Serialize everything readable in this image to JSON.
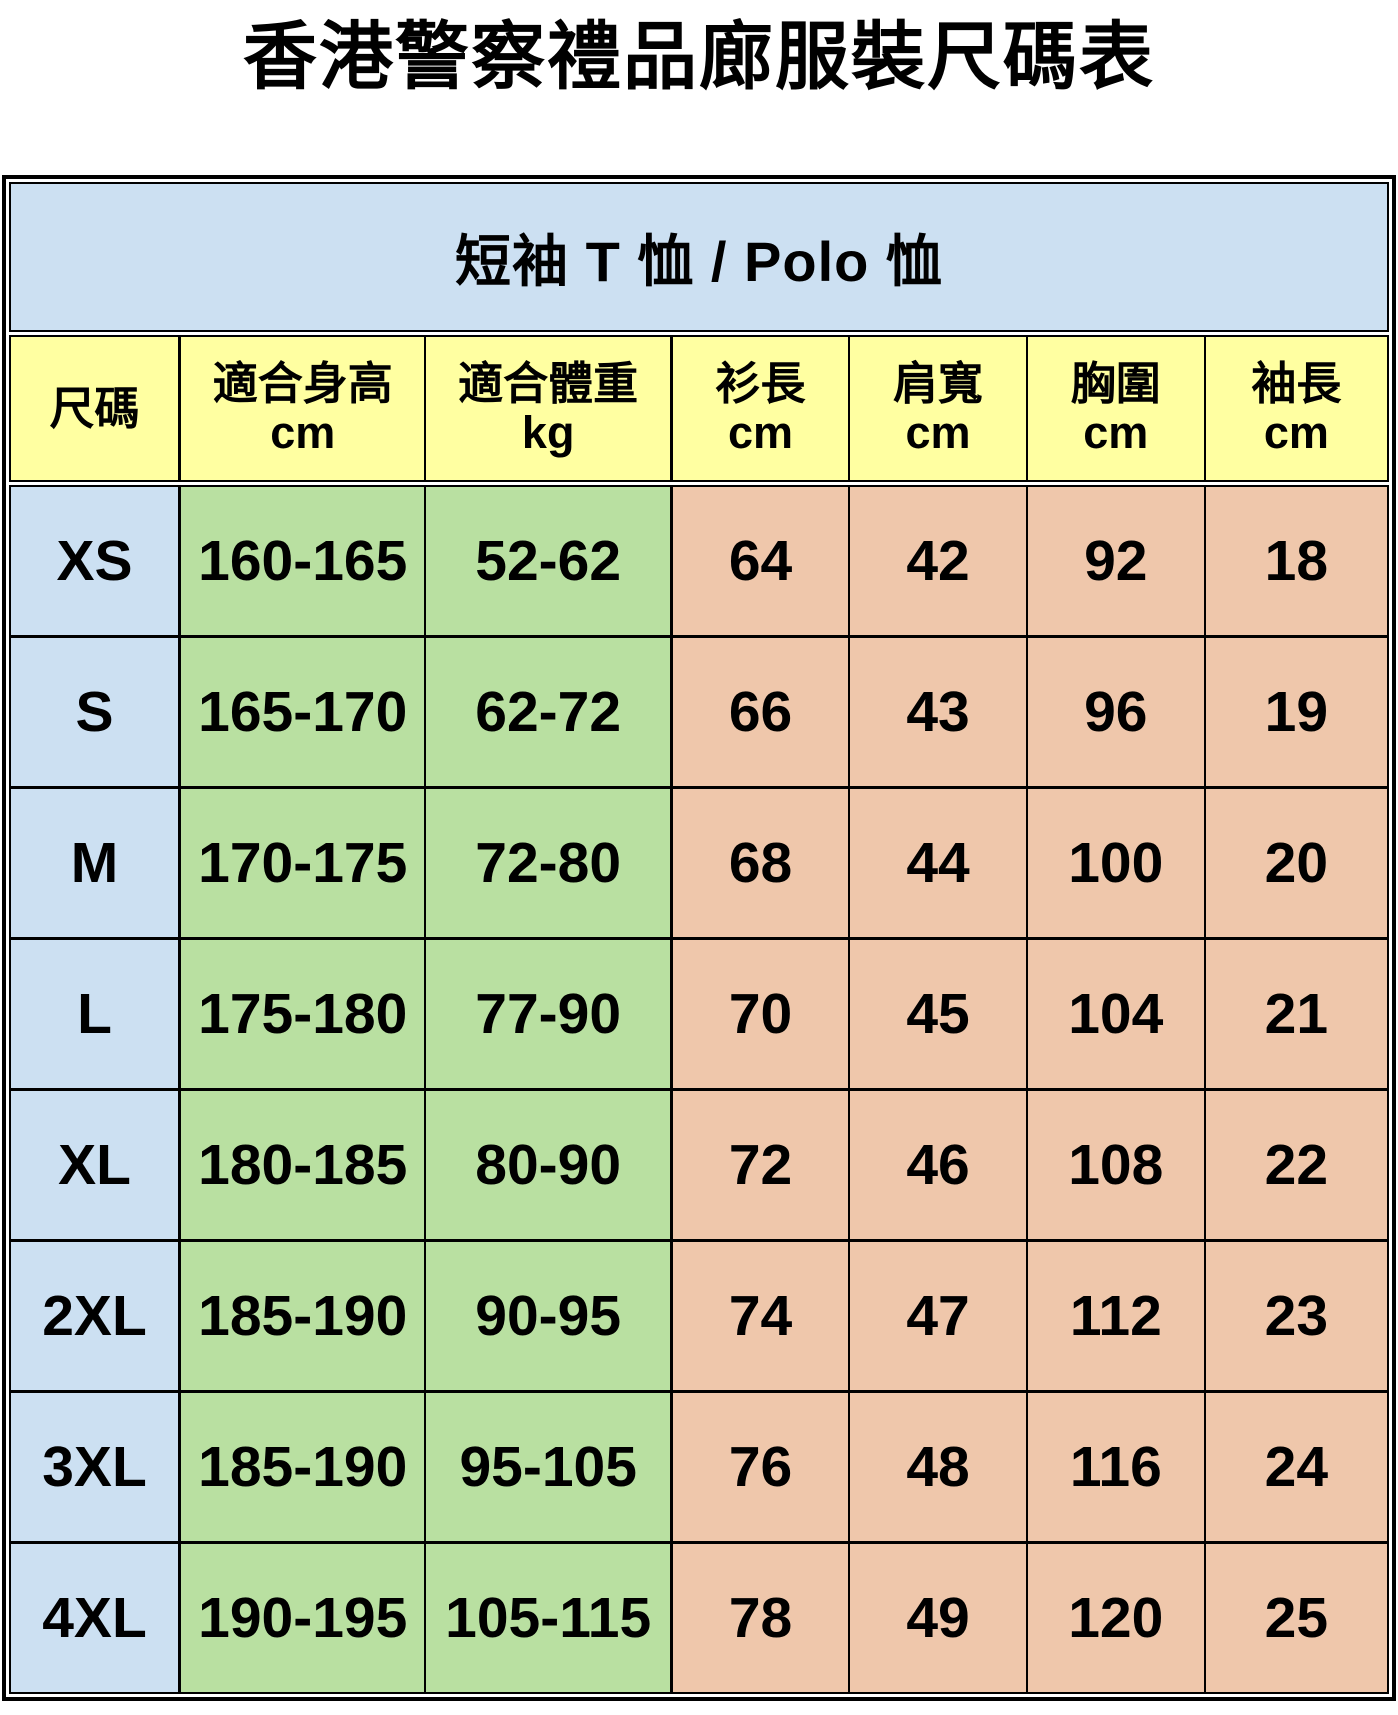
{
  "page": {
    "title": "香港警察禮品廊服裝尺碼表"
  },
  "table": {
    "section_header": "短袖 T 恤 / Polo 恤",
    "columns": [
      {
        "label": "尺碼",
        "unit": ""
      },
      {
        "label": "適合身高",
        "unit": "cm"
      },
      {
        "label": "適合體重",
        "unit": "kg"
      },
      {
        "label": "衫長",
        "unit": "cm"
      },
      {
        "label": "肩寬",
        "unit": "cm"
      },
      {
        "label": "胸圍",
        "unit": "cm"
      },
      {
        "label": "袖長",
        "unit": "cm"
      }
    ],
    "rows": [
      {
        "size": "XS",
        "height": "160-165",
        "weight": "52-62",
        "shirt_length": "64",
        "shoulder": "42",
        "chest": "92",
        "sleeve": "18"
      },
      {
        "size": "S",
        "height": "165-170",
        "weight": "62-72",
        "shirt_length": "66",
        "shoulder": "43",
        "chest": "96",
        "sleeve": "19"
      },
      {
        "size": "M",
        "height": "170-175",
        "weight": "72-80",
        "shirt_length": "68",
        "shoulder": "44",
        "chest": "100",
        "sleeve": "20"
      },
      {
        "size": "L",
        "height": "175-180",
        "weight": "77-90",
        "shirt_length": "70",
        "shoulder": "45",
        "chest": "104",
        "sleeve": "21"
      },
      {
        "size": "XL",
        "height": "180-185",
        "weight": "80-90",
        "shirt_length": "72",
        "shoulder": "46",
        "chest": "108",
        "sleeve": "22"
      },
      {
        "size": "2XL",
        "height": "185-190",
        "weight": "90-95",
        "shirt_length": "74",
        "shoulder": "47",
        "chest": "112",
        "sleeve": "23"
      },
      {
        "size": "3XL",
        "height": "185-190",
        "weight": "95-105",
        "shirt_length": "76",
        "shoulder": "48",
        "chest": "116",
        "sleeve": "24"
      },
      {
        "size": "4XL",
        "height": "190-195",
        "weight": "105-115",
        "shirt_length": "78",
        "shoulder": "49",
        "chest": "120",
        "sleeve": "25"
      }
    ],
    "colors": {
      "size_column_bg": "#CCE0F2",
      "section_band_bg": "#CCE0F2",
      "header_bg": "#FFFFA1",
      "body_fit_bg": "#B9E0A1",
      "garment_measure_bg": "#EFC7AB",
      "border": "#000000",
      "text": "#000000"
    }
  }
}
